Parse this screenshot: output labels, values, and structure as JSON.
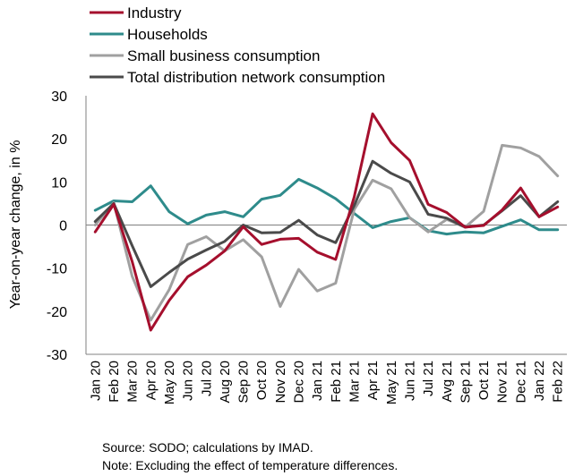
{
  "chart_data": {
    "type": "line",
    "title": "",
    "xlabel": "",
    "ylabel": "Year-on-year change, in %",
    "ylim": [
      -30,
      30
    ],
    "yticks": [
      30,
      20,
      10,
      0,
      -10,
      -20,
      -30
    ],
    "grid": false,
    "legend": "top-left",
    "categories": [
      "Jan 20",
      "Feb 20",
      "Mar 20",
      "Apr 20",
      "May 20",
      "Jun 20",
      "Jul 20",
      "Aug 20",
      "Sep 20",
      "Oct 20",
      "Nov 20",
      "Dec 20",
      "Jan 21",
      "Feb 21",
      "Mar 21",
      "Apr 21",
      "May 21",
      "Jun 21",
      "Jul 21",
      "Avg 21",
      "Sep 21",
      "Oct 21",
      "Nov 21",
      "Dec 21",
      "Jan 22",
      "Feb 22"
    ],
    "series": [
      {
        "name": "Industry",
        "color": "#A50F2D",
        "values": [
          -1.6,
          4.8,
          -8.5,
          -24.4,
          -17.5,
          -12.0,
          -9.3,
          -6.0,
          -0.4,
          -4.5,
          -3.3,
          -3.1,
          -6.3,
          -8.0,
          6.5,
          25.8,
          19.1,
          15.0,
          4.8,
          2.9,
          -0.5,
          -0.1,
          3.5,
          8.6,
          1.9,
          4.2
        ]
      },
      {
        "name": "Households",
        "color": "#2E8B8B",
        "values": [
          3.4,
          5.6,
          5.4,
          9.1,
          3.1,
          0.3,
          2.3,
          3.1,
          1.9,
          6.0,
          6.9,
          10.6,
          8.6,
          6.1,
          2.7,
          -0.6,
          0.8,
          1.7,
          -1.3,
          -2.1,
          -1.6,
          -1.8,
          -0.3,
          1.2,
          -1.1,
          -1.1
        ]
      },
      {
        "name": "Small business consumption",
        "color": "#A0A0A0",
        "values": [
          0.0,
          5.2,
          -11.9,
          -22.1,
          -15.0,
          -4.5,
          -2.7,
          -6.0,
          -3.4,
          -7.4,
          -18.9,
          -10.3,
          -15.3,
          -13.5,
          3.6,
          10.4,
          8.4,
          1.7,
          -1.6,
          1.3,
          -0.5,
          3.2,
          18.5,
          17.9,
          15.9,
          11.4
        ]
      },
      {
        "name": "Total distribution network consumption",
        "color": "#4A4A4A",
        "values": [
          0.8,
          5.0,
          -4.8,
          -14.3,
          -11.0,
          -7.9,
          -5.8,
          -3.8,
          0.0,
          -1.8,
          -1.7,
          1.1,
          -2.3,
          -4.1,
          4.5,
          14.8,
          12.0,
          10.0,
          2.5,
          1.6,
          -0.5,
          0.0,
          3.3,
          6.8,
          1.9,
          5.4
        ]
      }
    ]
  },
  "notes": {
    "source": "Source: SODO; calculations by IMAD.",
    "note": "Note: Excluding the effect of temperature differences."
  }
}
